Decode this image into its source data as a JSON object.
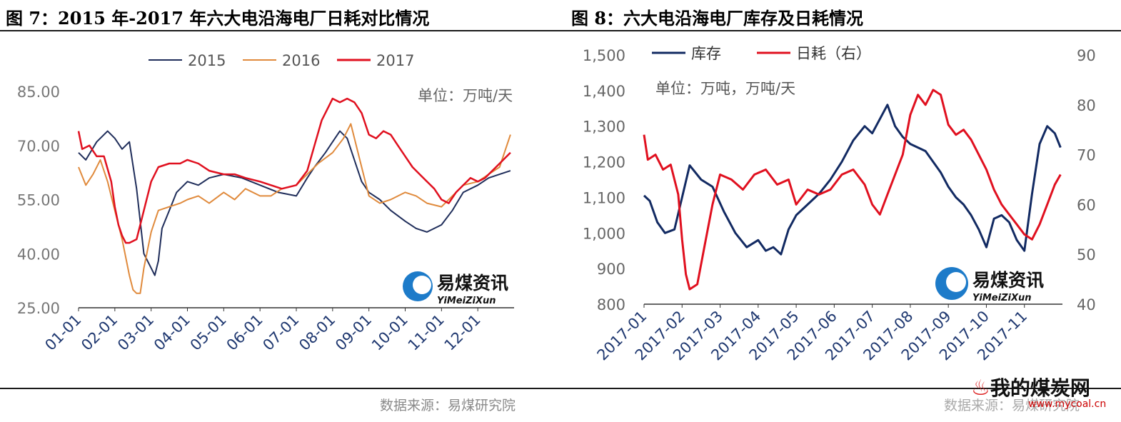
{
  "left": {
    "title": "图 7：2015 年-2017 年六大电沿海电厂日耗对比情况",
    "source": "数据来源：易煤研究院",
    "unit": "单位：万吨/天",
    "logo_cn": "易煤资讯",
    "logo_en": "YiMeiZiXun"
  },
  "right": {
    "title": "图 8：六大电沿海电厂库存及日耗情况",
    "source": "数据来源：易煤研究院",
    "unit": "单位：万吨，万吨/天",
    "logo_cn": "易煤资讯",
    "logo_en": "YiMeiZiXun"
  },
  "watermark": {
    "text": "我的煤炭网",
    "url": "www.mycoal.cn"
  },
  "chart_data": [
    {
      "type": "line",
      "title": "2015 年-2017 年六大电沿海电厂日耗对比情况",
      "y_unit": "单位：万吨/天",
      "ylim": [
        25,
        85
      ],
      "y_ticks": [
        "25.00",
        "40.00",
        "55.00",
        "70.00",
        "85.00"
      ],
      "x_ticks": [
        "01-01",
        "02-01",
        "03-01",
        "04-01",
        "05-01",
        "06-01",
        "07-01",
        "08-01",
        "09-01",
        "10-01",
        "11-01",
        "12-01"
      ],
      "legend_position": "top",
      "grid": false,
      "series": [
        {
          "name": "2015",
          "color": "#1f2d5a",
          "x": [
            0,
            0.2,
            0.5,
            0.8,
            1.0,
            1.2,
            1.4,
            1.6,
            1.8,
            2.0,
            2.1,
            2.2,
            2.3,
            2.5,
            2.7,
            3.0,
            3.3,
            3.6,
            4.0,
            4.5,
            5.0,
            5.5,
            6.0,
            6.3,
            6.5,
            6.8,
            7.0,
            7.2,
            7.4,
            7.6,
            7.8,
            8.0,
            8.3,
            8.6,
            9.0,
            9.3,
            9.6,
            10.0,
            10.3,
            10.6,
            11.0,
            11.3,
            11.6,
            11.9
          ],
          "values": [
            68,
            66,
            71,
            74,
            72,
            69,
            71,
            58,
            40,
            36,
            34,
            38,
            47,
            52,
            57,
            60,
            59,
            61,
            62,
            61,
            59,
            57,
            56,
            61,
            64,
            68,
            71,
            74,
            72,
            66,
            60,
            57,
            55,
            52,
            49,
            47,
            46,
            48,
            52,
            57,
            59,
            61,
            62,
            63
          ]
        },
        {
          "name": "2016",
          "color": "#e08a3c",
          "x": [
            0,
            0.2,
            0.4,
            0.6,
            0.8,
            1.0,
            1.2,
            1.4,
            1.5,
            1.6,
            1.7,
            1.8,
            2.0,
            2.2,
            2.5,
            2.8,
            3.0,
            3.3,
            3.6,
            4.0,
            4.3,
            4.6,
            5.0,
            5.3,
            5.6,
            6.0,
            6.3,
            6.6,
            7.0,
            7.3,
            7.5,
            7.8,
            8.0,
            8.3,
            8.6,
            9.0,
            9.3,
            9.6,
            10.0,
            10.3,
            10.6,
            11.0,
            11.3,
            11.6,
            11.9
          ],
          "values": [
            64,
            59,
            62,
            66,
            60,
            52,
            44,
            34,
            30,
            29,
            29,
            36,
            46,
            52,
            53,
            54,
            55,
            56,
            54,
            57,
            55,
            58,
            56,
            56,
            58,
            59,
            62,
            65,
            68,
            72,
            76,
            64,
            56,
            54,
            55,
            57,
            56,
            54,
            53,
            56,
            59,
            60,
            62,
            64,
            73
          ]
        },
        {
          "name": "2017",
          "color": "#e0101f",
          "x": [
            0,
            0.1,
            0.3,
            0.5,
            0.7,
            0.9,
            1.0,
            1.1,
            1.2,
            1.3,
            1.4,
            1.6,
            1.8,
            2.0,
            2.2,
            2.5,
            2.8,
            3.0,
            3.3,
            3.6,
            4.0,
            4.3,
            4.6,
            5.0,
            5.3,
            5.6,
            6.0,
            6.3,
            6.5,
            6.7,
            6.9,
            7.0,
            7.2,
            7.4,
            7.6,
            7.8,
            8.0,
            8.2,
            8.4,
            8.6,
            8.8,
            9.0,
            9.2,
            9.4,
            9.6,
            9.8,
            10.0,
            10.2,
            10.4,
            10.6,
            10.8,
            11.0,
            11.2,
            11.4,
            11.6,
            11.8,
            11.9
          ],
          "values": [
            74,
            69,
            70,
            67,
            67,
            60,
            53,
            48,
            45,
            43,
            43,
            44,
            52,
            60,
            64,
            65,
            65,
            66,
            65,
            63,
            62,
            62,
            61,
            60,
            59,
            58,
            59,
            63,
            70,
            77,
            81,
            83,
            82,
            83,
            82,
            79,
            73,
            72,
            74,
            73,
            70,
            67,
            64,
            62,
            60,
            58,
            55,
            54,
            57,
            59,
            61,
            60,
            61,
            63,
            65,
            67,
            68
          ]
        }
      ]
    },
    {
      "type": "line",
      "title": "六大电沿海电厂库存及日耗情况",
      "y_unit": "单位：万吨，万吨/天",
      "ylim_left": [
        800,
        1500
      ],
      "ylim_right": [
        40,
        90
      ],
      "y_ticks_left": [
        "800",
        "900",
        "1,000",
        "1,100",
        "1,200",
        "1,300",
        "1,400",
        "1,500"
      ],
      "y_ticks_right": [
        "40",
        "50",
        "60",
        "70",
        "80",
        "90"
      ],
      "x_ticks": [
        "2017-01",
        "2017-02",
        "2017-03",
        "2017-04",
        "2017-05",
        "2017-06",
        "2017-07",
        "2017-08",
        "2017-09",
        "2017-10",
        "2017-11"
      ],
      "legend_position": "top-left",
      "grid": false,
      "series": [
        {
          "name": "库存",
          "axis": "left",
          "color": "#122a62",
          "x": [
            0,
            0.15,
            0.35,
            0.55,
            0.8,
            1.0,
            1.2,
            1.5,
            1.8,
            2.1,
            2.4,
            2.7,
            3.0,
            3.2,
            3.4,
            3.6,
            3.8,
            4.0,
            4.3,
            4.6,
            4.9,
            5.2,
            5.5,
            5.8,
            6.0,
            6.2,
            6.4,
            6.6,
            6.8,
            7.0,
            7.2,
            7.4,
            7.6,
            7.8,
            8.0,
            8.2,
            8.4,
            8.6,
            8.8,
            9.0,
            9.2,
            9.4,
            9.6,
            9.8,
            10.0,
            10.2,
            10.4,
            10.6,
            10.8,
            10.95
          ],
          "values": [
            1105,
            1090,
            1030,
            1000,
            1010,
            1100,
            1190,
            1150,
            1130,
            1060,
            1000,
            960,
            980,
            950,
            960,
            940,
            1010,
            1050,
            1080,
            1110,
            1150,
            1200,
            1260,
            1300,
            1280,
            1320,
            1360,
            1300,
            1270,
            1250,
            1240,
            1230,
            1200,
            1170,
            1130,
            1100,
            1080,
            1050,
            1010,
            960,
            1040,
            1050,
            1030,
            980,
            950,
            1110,
            1250,
            1300,
            1280,
            1240
          ]
        },
        {
          "name": "日耗（右）",
          "axis": "right",
          "color": "#e0101f",
          "x": [
            0,
            0.1,
            0.3,
            0.5,
            0.7,
            0.9,
            1.0,
            1.1,
            1.2,
            1.4,
            1.6,
            1.8,
            2.0,
            2.3,
            2.6,
            2.9,
            3.2,
            3.5,
            3.8,
            4.0,
            4.3,
            4.6,
            4.9,
            5.2,
            5.5,
            5.8,
            6.0,
            6.2,
            6.4,
            6.6,
            6.8,
            7.0,
            7.2,
            7.4,
            7.6,
            7.8,
            8.0,
            8.2,
            8.4,
            8.6,
            8.8,
            9.0,
            9.2,
            9.4,
            9.6,
            9.8,
            10.0,
            10.2,
            10.4,
            10.6,
            10.8,
            10.95
          ],
          "values": [
            74,
            69,
            70,
            67,
            68,
            62,
            53,
            46,
            43,
            44,
            52,
            60,
            66,
            65,
            63,
            66,
            67,
            64,
            65,
            60,
            63,
            62,
            63,
            66,
            67,
            64,
            60,
            58,
            62,
            66,
            70,
            78,
            82,
            80,
            83,
            82,
            76,
            74,
            75,
            73,
            70,
            67,
            63,
            60,
            58,
            56,
            54,
            53,
            56,
            60,
            64,
            66
          ]
        }
      ]
    }
  ]
}
